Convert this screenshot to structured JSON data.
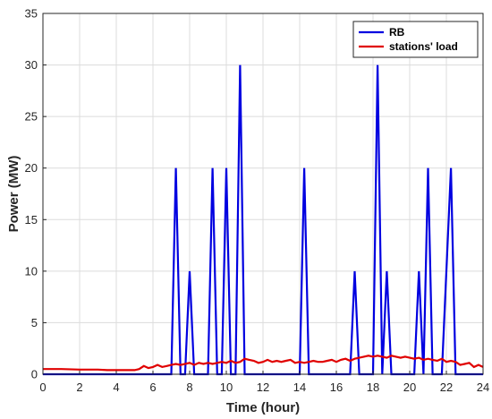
{
  "chart_data": {
    "type": "line",
    "xlabel": "Time (hour)",
    "ylabel": "Power (MW)",
    "xlim": [
      0,
      24
    ],
    "ylim": [
      0,
      35
    ],
    "xticks": [
      "0",
      "2",
      "4",
      "6",
      "8",
      "10",
      "12",
      "14",
      "16",
      "18",
      "20",
      "22",
      "24"
    ],
    "yticks": [
      "0",
      "5",
      "10",
      "15",
      "20",
      "25",
      "30",
      "35"
    ],
    "grid": true,
    "legend": "top-right",
    "series": [
      {
        "name": "RB",
        "color": "#0000e0",
        "x": [
          0,
          7.0,
          7.25,
          7.5,
          7.75,
          8.0,
          8.25,
          9.0,
          9.25,
          9.5,
          9.75,
          10.0,
          10.25,
          10.5,
          10.75,
          11.0,
          14.0,
          14.25,
          14.5,
          16.75,
          17.0,
          17.25,
          18.0,
          18.25,
          18.5,
          18.75,
          19.0,
          20.25,
          20.5,
          20.75,
          21.0,
          21.25,
          21.75,
          22.25,
          22.5,
          24
        ],
        "y": [
          0,
          0,
          20,
          0,
          0,
          10,
          0,
          0,
          20,
          0,
          0,
          20,
          0,
          0,
          30,
          0,
          0,
          20,
          0,
          0,
          10,
          0,
          0,
          30,
          0,
          10,
          0,
          0,
          10,
          0,
          20,
          0,
          0,
          20,
          0,
          0
        ]
      },
      {
        "name": "stations' load",
        "color": "#e00000",
        "x": [
          0,
          1,
          2,
          3,
          3.5,
          4,
          4.5,
          5,
          5.25,
          5.5,
          5.75,
          6,
          6.25,
          6.5,
          6.75,
          7,
          7.25,
          7.5,
          7.75,
          8,
          8.25,
          8.5,
          8.75,
          9,
          9.25,
          9.5,
          9.75,
          10,
          10.25,
          10.5,
          10.75,
          11,
          11.25,
          11.5,
          11.75,
          12,
          12.25,
          12.5,
          12.75,
          13,
          13.25,
          13.5,
          13.75,
          14,
          14.25,
          14.5,
          14.75,
          15,
          15.25,
          15.5,
          15.75,
          16,
          16.25,
          16.5,
          16.75,
          17,
          17.25,
          17.5,
          17.75,
          18,
          18.25,
          18.5,
          18.75,
          19,
          19.25,
          19.5,
          19.75,
          20,
          20.25,
          20.5,
          20.75,
          21,
          21.25,
          21.5,
          21.75,
          22,
          22.25,
          22.5,
          22.75,
          23,
          23.25,
          23.5,
          23.75,
          24
        ],
        "y": [
          0.5,
          0.5,
          0.45,
          0.45,
          0.4,
          0.4,
          0.4,
          0.4,
          0.5,
          0.8,
          0.6,
          0.7,
          0.9,
          0.7,
          0.8,
          0.9,
          1.0,
          0.9,
          1.0,
          1.1,
          0.9,
          1.1,
          1.0,
          1.1,
          1.0,
          1.1,
          1.2,
          1.1,
          1.3,
          1.1,
          1.2,
          1.5,
          1.4,
          1.3,
          1.1,
          1.2,
          1.4,
          1.2,
          1.3,
          1.2,
          1.3,
          1.4,
          1.1,
          1.2,
          1.1,
          1.2,
          1.3,
          1.2,
          1.2,
          1.3,
          1.4,
          1.2,
          1.4,
          1.5,
          1.3,
          1.5,
          1.6,
          1.7,
          1.8,
          1.7,
          1.8,
          1.7,
          1.6,
          1.8,
          1.7,
          1.6,
          1.7,
          1.6,
          1.5,
          1.6,
          1.4,
          1.5,
          1.4,
          1.3,
          1.5,
          1.2,
          1.3,
          1.2,
          0.9,
          1.0,
          1.1,
          0.7,
          0.9,
          0.7
        ]
      }
    ]
  }
}
